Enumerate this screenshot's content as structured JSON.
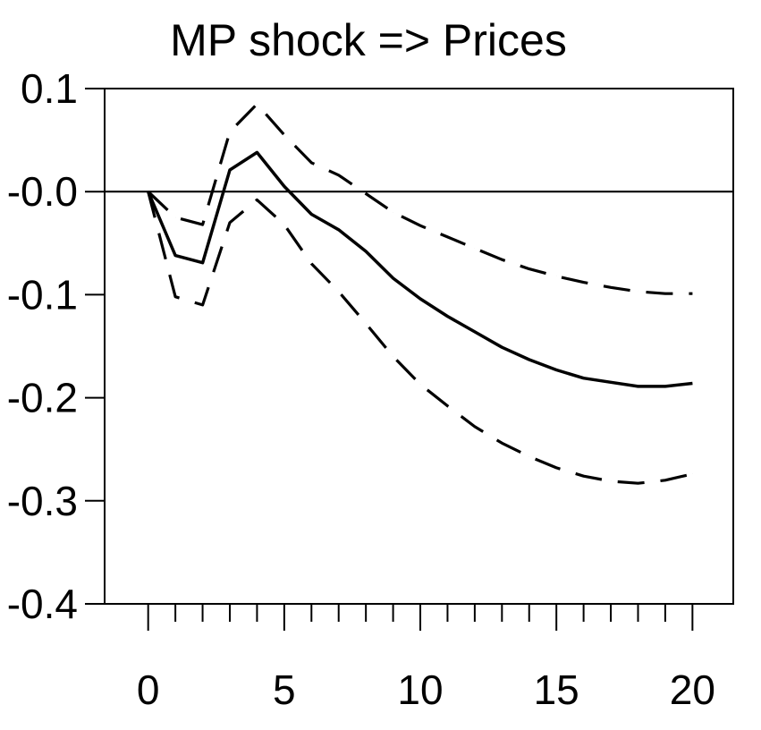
{
  "chart_data": {
    "type": "line",
    "title": "MP shock => Prices",
    "xlabel": "",
    "ylabel": "",
    "xlim": [
      -1.6,
      21.5
    ],
    "ylim": [
      -0.4,
      0.1
    ],
    "xticks": [
      0,
      5,
      10,
      15,
      20
    ],
    "xtick_labels": [
      "0",
      "5",
      "10",
      "15",
      "20"
    ],
    "yticks": [
      0.1,
      0.0,
      -0.1,
      -0.2,
      -0.3,
      -0.4
    ],
    "ytick_labels": [
      "0.1",
      "-0.0",
      "-0.1",
      "-0.2",
      "-0.3",
      "-0.4"
    ],
    "minor_xticks_every": 1,
    "zero_line": true,
    "grid": false,
    "legend": "none",
    "x": [
      0,
      1,
      2,
      3,
      4,
      5,
      6,
      7,
      8,
      9,
      10,
      11,
      12,
      13,
      14,
      15,
      16,
      17,
      18,
      19,
      20
    ],
    "series": [
      {
        "style": "solid",
        "values": [
          0.0,
          -0.062,
          -0.069,
          0.021,
          0.038,
          0.005,
          -0.022,
          -0.037,
          -0.058,
          -0.084,
          -0.104,
          -0.121,
          -0.136,
          -0.151,
          -0.163,
          -0.173,
          -0.181,
          -0.185,
          -0.189,
          -0.189,
          -0.186
        ]
      },
      {
        "style": "dashed",
        "values": [
          0.0,
          -0.025,
          -0.032,
          0.058,
          0.085,
          0.055,
          0.028,
          0.016,
          -0.002,
          -0.02,
          -0.033,
          -0.044,
          -0.055,
          -0.066,
          -0.075,
          -0.082,
          -0.088,
          -0.093,
          -0.097,
          -0.099,
          -0.099
        ]
      },
      {
        "style": "dashed",
        "values": [
          0.0,
          -0.102,
          -0.11,
          -0.03,
          -0.008,
          -0.032,
          -0.07,
          -0.097,
          -0.128,
          -0.16,
          -0.187,
          -0.208,
          -0.228,
          -0.244,
          -0.257,
          -0.268,
          -0.276,
          -0.281,
          -0.283,
          -0.28,
          -0.274
        ]
      }
    ]
  }
}
